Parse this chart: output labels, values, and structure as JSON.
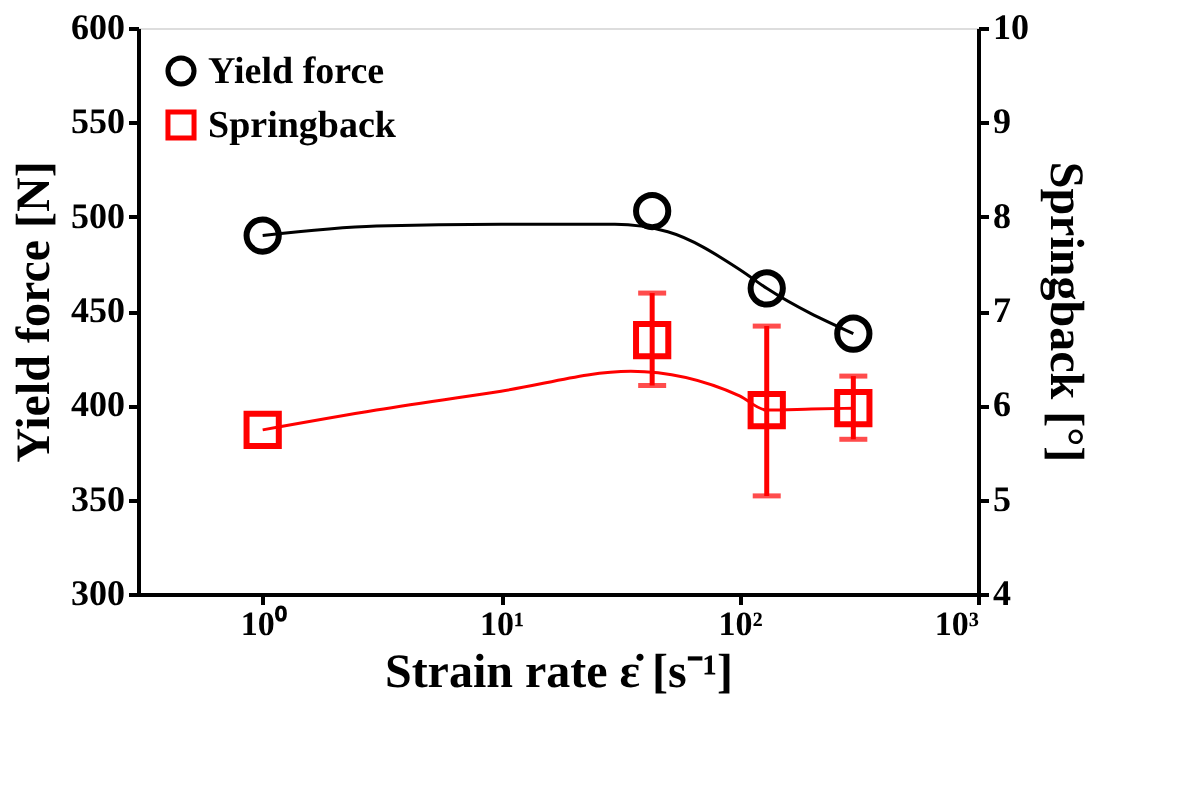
{
  "chart_data": {
    "type": "scatter",
    "xlabel": "Strain rate ε̇ [s⁻¹]",
    "ylabel": "Yield force [N]",
    "y2label": "Springback [°]",
    "log": "x",
    "xlim": [
      0.3,
      1000
    ],
    "xticks": [
      {
        "value": 1,
        "label": "10⁰"
      },
      {
        "value": 10,
        "label": "10¹"
      },
      {
        "value": 100,
        "label": "10²"
      },
      {
        "value": 1000,
        "label": "10³"
      }
    ],
    "ylim": [
      300,
      600
    ],
    "yticks": [
      300,
      350,
      400,
      450,
      500,
      550,
      600
    ],
    "y2lim": [
      4,
      10
    ],
    "y2ticks": [
      4,
      5,
      6,
      7,
      8,
      9,
      10
    ],
    "grid": false,
    "legend": "top left",
    "series": [
      {
        "name": "Yield force",
        "marker": "circle",
        "color": "#000000",
        "x": [
          1,
          43,
          130,
          300
        ],
        "values": [
          490,
          503,
          462,
          438
        ]
      },
      {
        "name": "Springback",
        "marker": "square",
        "axis": "y2",
        "color": "#ff0000",
        "x": [
          1,
          43,
          130,
          300
        ],
        "values": [
          5.74,
          6.69,
          5.95,
          5.97
        ],
        "errors": [
          null,
          [
            6.21,
            7.19
          ],
          [
            5.04,
            6.84
          ],
          [
            5.64,
            6.31
          ]
        ]
      },
      {
        "type": "line",
        "marker": "none",
        "color": "#000000",
        "x": [
          1,
          3,
          10,
          30,
          50,
          100,
          130,
          300
        ],
        "values": [
          490,
          495,
          496,
          496,
          492,
          472,
          462,
          438
        ]
      },
      {
        "type": "line",
        "marker": "none",
        "axis": "y2",
        "color": "#ff0000",
        "x": [
          1,
          3,
          10,
          35,
          100,
          130,
          200,
          300
        ],
        "values": [
          5.74,
          5.95,
          6.15,
          6.36,
          6.1,
          5.95,
          5.96,
          5.97
        ]
      }
    ]
  }
}
